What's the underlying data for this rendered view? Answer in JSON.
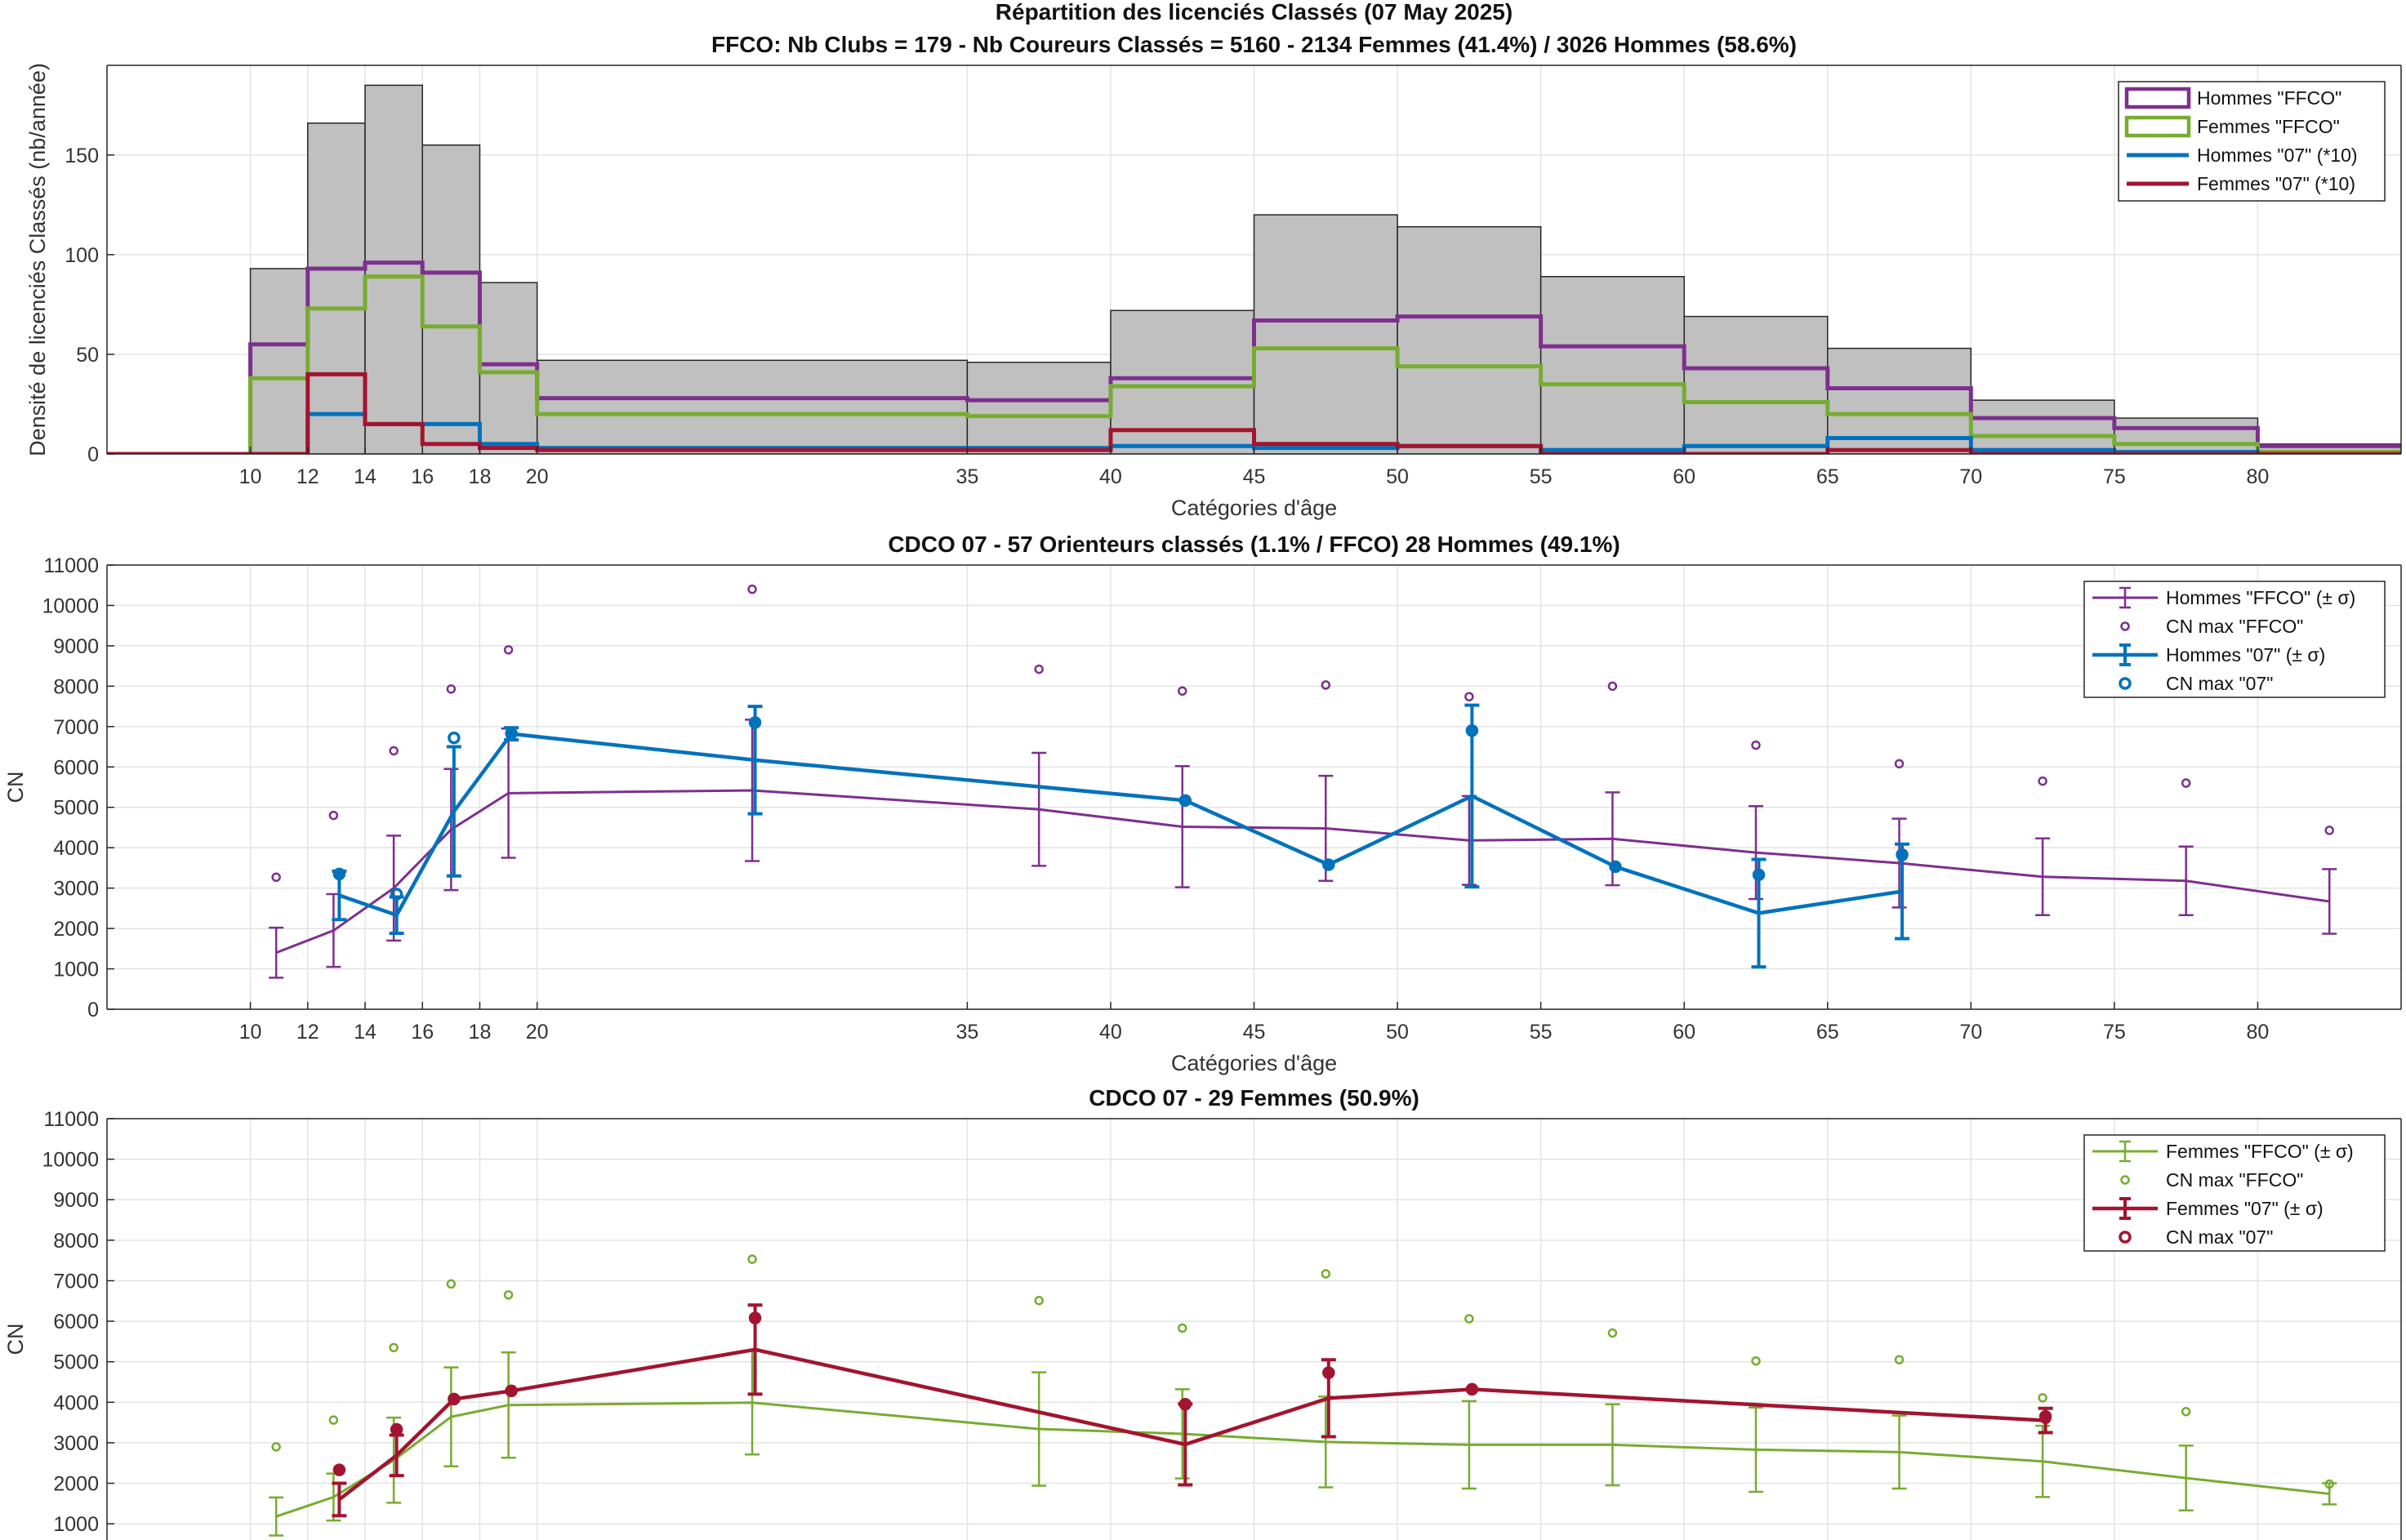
{
  "chart_data": [
    {
      "type": "bar",
      "title": "Répartition des licenciés Classés (07 May 2025)",
      "subtitle": "FFCO: Nb Clubs = 179   -   Nb Coureurs Classés = 5160   -   2134 Femmes (41.4%) / 3026 Hommes (58.6%)",
      "xlabel": "Catégories d'âge",
      "ylabel": "Densité de licenciés Classés (nb/année)",
      "xlim": [
        5,
        85
      ],
      "ylim": [
        0,
        195
      ],
      "xticks": [
        10,
        12,
        14,
        16,
        18,
        20,
        35,
        40,
        45,
        50,
        55,
        60,
        65,
        70,
        75,
        80
      ],
      "yticks": [
        0,
        50,
        100,
        150
      ],
      "grid": true,
      "legend_position": "top-right",
      "bins": [
        [
          5,
          10
        ],
        [
          10,
          12
        ],
        [
          12,
          14
        ],
        [
          14,
          16
        ],
        [
          16,
          18
        ],
        [
          18,
          20
        ],
        [
          20,
          35
        ],
        [
          35,
          40
        ],
        [
          40,
          45
        ],
        [
          45,
          50
        ],
        [
          50,
          55
        ],
        [
          55,
          60
        ],
        [
          60,
          65
        ],
        [
          65,
          70
        ],
        [
          70,
          75
        ],
        [
          75,
          80
        ],
        [
          80,
          85
        ]
      ],
      "total": [
        0,
        93,
        166,
        185,
        155,
        86,
        47,
        46,
        72,
        120,
        114,
        89,
        69,
        53,
        27,
        18,
        5
      ],
      "series": [
        {
          "name": "Hommes \"FFCO\"",
          "color": "#7e2f8e",
          "values": [
            0,
            55,
            93,
            96,
            91,
            45,
            28,
            27,
            38,
            67,
            69,
            54,
            43,
            33,
            18,
            13,
            4
          ]
        },
        {
          "name": "Femmes \"FFCO\"",
          "color": "#77ac30",
          "values": [
            0,
            38,
            73,
            89,
            64,
            41,
            20,
            19,
            34,
            53,
            44,
            35,
            26,
            20,
            9,
            5,
            1
          ]
        },
        {
          "name": "Hommes \"07\" (*10)",
          "color": "#0072bd",
          "values": [
            0,
            0,
            20,
            15,
            15,
            5,
            3,
            3,
            4,
            3,
            4,
            2,
            4,
            8,
            2,
            1,
            0
          ]
        },
        {
          "name": "Femmes \"07\" (*10)",
          "color": "#a2142f",
          "values": [
            0,
            0,
            40,
            15,
            5,
            3,
            2,
            2,
            12,
            5,
            4,
            0,
            0,
            2,
            0,
            0,
            0
          ]
        }
      ]
    },
    {
      "type": "line",
      "title": "CDCO 07  -  57 Orienteurs classés (1.1% / FFCO)  28 Hommes (49.1%)",
      "xlabel": "Catégories d'âge",
      "ylabel": "CN",
      "xlim": [
        5,
        85
      ],
      "ylim": [
        0,
        11000
      ],
      "xticks": [
        10,
        12,
        14,
        16,
        18,
        20,
        35,
        40,
        45,
        50,
        55,
        60,
        65,
        70,
        75,
        80
      ],
      "yticks": [
        0,
        1000,
        2000,
        3000,
        4000,
        5000,
        6000,
        7000,
        8000,
        9000,
        10000,
        11000
      ],
      "grid": true,
      "legend_position": "top-right",
      "series": [
        {
          "name": "Hommes \"FFCO\" (± σ)",
          "kind": "errorline",
          "color": "#7e2f8e",
          "x": [
            10.9,
            12.9,
            15,
            17,
            19,
            27.5,
            37.5,
            42.5,
            47.5,
            52.5,
            57.5,
            62.5,
            67.5,
            72.5,
            77.5,
            82.5
          ],
          "y": [
            1400,
            1950,
            3000,
            4450,
            5350,
            5420,
            4950,
            4520,
            4480,
            4180,
            4220,
            3880,
            3620,
            3280,
            3180,
            2670
          ],
          "err": [
            620,
            900,
            1300,
            1500,
            1600,
            1750,
            1400,
            1500,
            1300,
            1100,
            1150,
            1150,
            1100,
            950,
            850,
            800
          ]
        },
        {
          "name": "CN max \"FFCO\"",
          "kind": "markers",
          "color": "#7e2f8e",
          "x": [
            10.9,
            12.9,
            15,
            17,
            19,
            27.5,
            37.5,
            42.5,
            47.5,
            52.5,
            57.5,
            62.5,
            67.5,
            72.5,
            77.5,
            82.5
          ],
          "y": [
            3270,
            4800,
            6400,
            7930,
            8900,
            10400,
            8420,
            7880,
            8030,
            7740,
            8000,
            6540,
            6080,
            5650,
            5600,
            4430
          ]
        },
        {
          "name": "Hommes \"07\" (± σ)",
          "kind": "errorline",
          "color": "#0072bd",
          "x": [
            13.1,
            15.1,
            17.1,
            19.1,
            27.6,
            42.6,
            47.6,
            52.6,
            57.6,
            62.6,
            67.6
          ],
          "y": [
            2820,
            2330,
            4900,
            6820,
            6170,
            5170,
            3580,
            5280,
            3530,
            2380,
            2920
          ],
          "err": [
            600,
            450,
            1600,
            150,
            1330,
            0,
            0,
            2250,
            0,
            1330,
            1170
          ]
        },
        {
          "name": "CN max \"07\"",
          "kind": "markers",
          "color": "#0072bd",
          "x": [
            13.1,
            15.1,
            17.1,
            19.1,
            27.6,
            42.6,
            47.6,
            52.6,
            57.6,
            62.6,
            67.6
          ],
          "y": [
            3350,
            2850,
            6720,
            6830,
            7100,
            5170,
            3580,
            6900,
            3530,
            3330,
            3830
          ]
        },
        {
          "name": "",
          "kind": "points",
          "color": "#0072bd",
          "x": [
            13.1,
            19.1,
            27.6,
            42.6,
            47.6,
            52.6,
            57.6,
            62.6,
            67.6
          ],
          "y": [
            3330,
            6820,
            7100,
            5170,
            3580,
            6900,
            3530,
            3330,
            3800
          ]
        }
      ]
    },
    {
      "type": "line",
      "title": "CDCO 07  -  29 Femmes (50.9%)",
      "ylabel": "CN",
      "xlim": [
        5,
        85
      ],
      "ylim": [
        600,
        11000
      ],
      "yticks": [
        1000,
        2000,
        3000,
        4000,
        5000,
        6000,
        7000,
        8000,
        9000,
        10000,
        11000
      ],
      "grid": true,
      "legend_position": "top-right",
      "series": [
        {
          "name": "Femmes \"FFCO\" (± σ)",
          "kind": "errorline",
          "color": "#77ac30",
          "x": [
            10.9,
            12.9,
            15,
            17,
            19,
            27.5,
            37.5,
            42.5,
            47.5,
            52.5,
            57.5,
            62.5,
            67.5,
            72.5,
            77.5,
            82.5
          ],
          "y": [
            1180,
            1660,
            2570,
            3640,
            3930,
            3990,
            3340,
            3220,
            3020,
            2950,
            2950,
            2830,
            2770,
            2540,
            2130,
            1740
          ],
          "err": [
            470,
            580,
            1050,
            1220,
            1300,
            1280,
            1400,
            1100,
            1120,
            1080,
            1000,
            1040,
            900,
            880,
            800,
            260
          ]
        },
        {
          "name": "CN max \"FFCO\"",
          "kind": "markers",
          "color": "#77ac30",
          "x": [
            10.9,
            12.9,
            15,
            17,
            19,
            27.5,
            37.5,
            42.5,
            47.5,
            52.5,
            57.5,
            62.5,
            67.5,
            72.5,
            77.5,
            82.5
          ],
          "y": [
            2900,
            3560,
            5350,
            6920,
            6650,
            7530,
            6510,
            5830,
            7170,
            6060,
            5710,
            5020,
            5050,
            4110,
            3770,
            1980
          ]
        },
        {
          "name": "Femmes \"07\" (± σ)",
          "kind": "errorline",
          "color": "#a2142f",
          "x": [
            13.1,
            15.1,
            17.1,
            19.1,
            27.6,
            42.6,
            47.6,
            52.6,
            72.6
          ],
          "y": [
            1600,
            2690,
            4080,
            4280,
            5300,
            2960,
            4100,
            4320,
            3550
          ],
          "err": [
            400,
            500,
            0,
            0,
            1100,
            1000,
            950,
            0,
            300
          ]
        },
        {
          "name": "CN max \"07\"",
          "kind": "markers",
          "color": "#a2142f",
          "x": [
            13.1,
            15.1,
            17.1,
            19.1,
            27.6,
            42.6,
            47.6,
            52.6,
            72.6
          ],
          "y": [
            2330,
            3330,
            4080,
            4280,
            6080,
            3950,
            4730,
            4320,
            3650
          ]
        },
        {
          "name": "",
          "kind": "points",
          "color": "#a2142f",
          "x": [
            13.1,
            15.1,
            17.1,
            19.1,
            27.6,
            42.6,
            47.6,
            52.6,
            72.6
          ],
          "y": [
            2330,
            3330,
            4080,
            4280,
            6080,
            3950,
            4730,
            4320,
            3600
          ]
        }
      ]
    }
  ]
}
